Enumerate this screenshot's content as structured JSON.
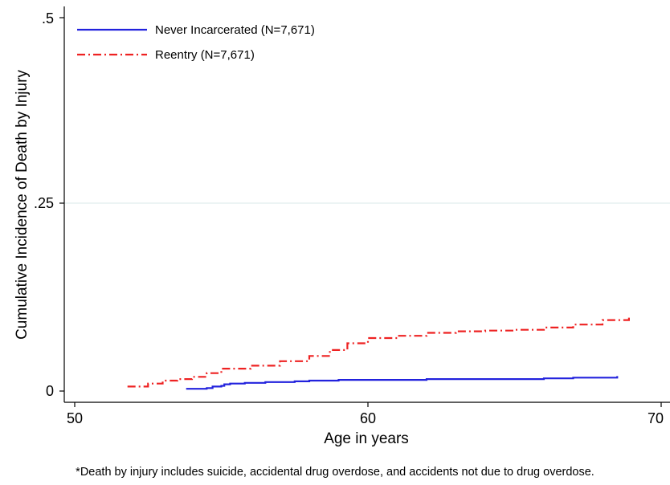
{
  "chart_data": {
    "type": "line",
    "title": "",
    "xlabel": "Age in years",
    "ylabel": "Cumulative Incidence of Death by Injury",
    "xlim": [
      50,
      70
    ],
    "ylim": [
      0,
      0.5
    ],
    "x_ticks": [
      50,
      60,
      70
    ],
    "x_tick_labels": [
      "50",
      "60",
      "70"
    ],
    "y_ticks": [
      0,
      0.25,
      0.5
    ],
    "y_tick_labels": [
      "0",
      ".25",
      ".5"
    ],
    "grid": "horizontal at .25",
    "legend_position": "top-left",
    "series": [
      {
        "name": "Never Incarcerated (N=7,671)",
        "color": "#2222dd",
        "style": "solid",
        "x": [
          53.8,
          54.5,
          54.7,
          55.0,
          55.1,
          55.3,
          55.8,
          56.5,
          57.5,
          58.0,
          59.0,
          60.0,
          62.0,
          64.0,
          66.0,
          67.0,
          68.5
        ],
        "y": [
          0.003,
          0.004,
          0.006,
          0.007,
          0.009,
          0.01,
          0.011,
          0.012,
          0.013,
          0.014,
          0.015,
          0.015,
          0.016,
          0.016,
          0.017,
          0.018,
          0.02
        ]
      },
      {
        "name": "Reentry (N=7,671)",
        "color": "#ee2222",
        "style": "dash-dot",
        "x": [
          51.8,
          52.5,
          53.0,
          53.5,
          54.0,
          54.5,
          55.0,
          56.0,
          57.0,
          58.0,
          58.7,
          59.3,
          60.0,
          61.0,
          62.0,
          63.0,
          64.0,
          65.0,
          66.0,
          67.0,
          68.0,
          68.9
        ],
        "y": [
          0.006,
          0.01,
          0.014,
          0.016,
          0.019,
          0.024,
          0.03,
          0.034,
          0.04,
          0.047,
          0.055,
          0.064,
          0.071,
          0.074,
          0.078,
          0.08,
          0.081,
          0.082,
          0.085,
          0.089,
          0.095,
          0.1
        ]
      }
    ]
  },
  "footnote": "*Death by injury includes suicide, accidental drug overdose, and accidents not due to drug overdose."
}
